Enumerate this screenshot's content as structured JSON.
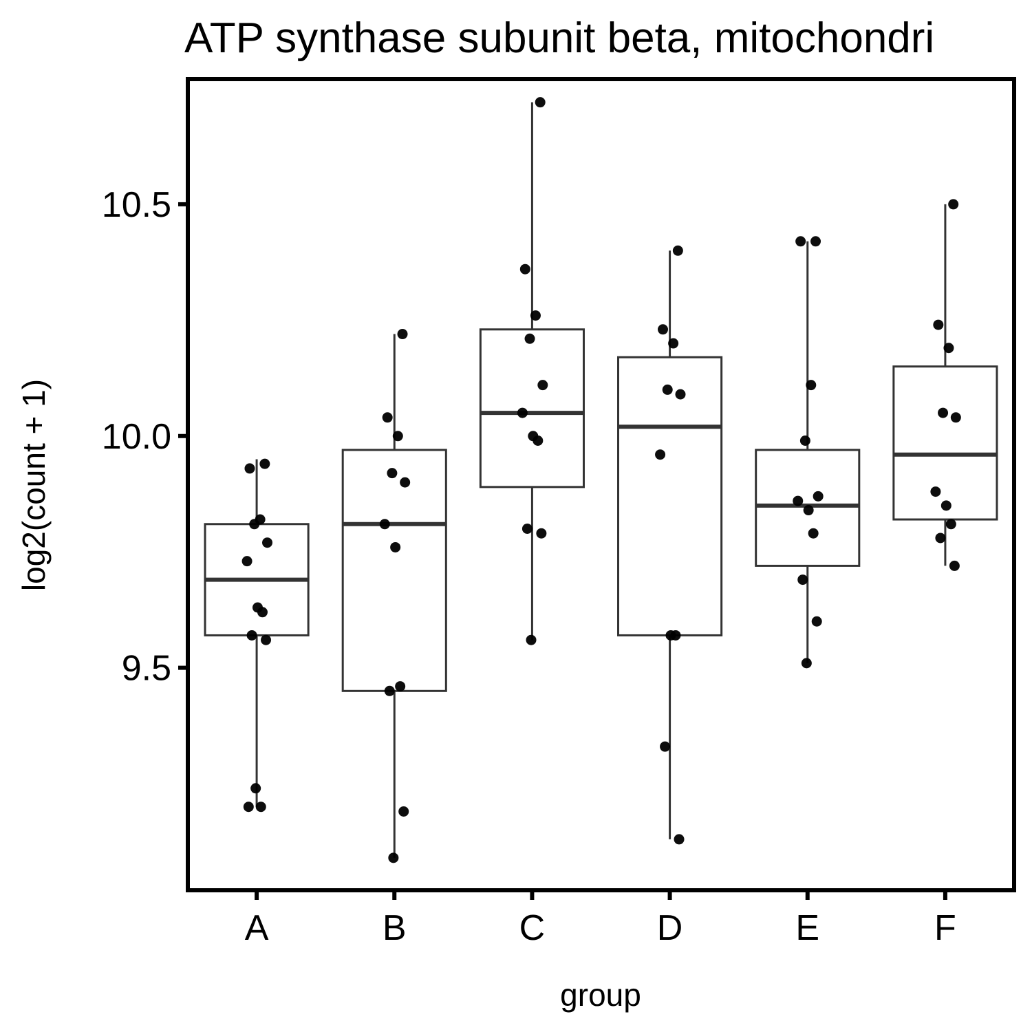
{
  "chart_data": {
    "type": "boxplot",
    "title": "ATP synthase subunit beta, mitochondri",
    "xlabel": "group",
    "ylabel": "log2(count + 1)",
    "categories": [
      "A",
      "B",
      "C",
      "D",
      "E",
      "F"
    ],
    "y_ticks": [
      9.5,
      10.0,
      10.5
    ],
    "y_tick_labels": [
      "9.5",
      "10.0",
      "10.5"
    ],
    "ylim": [
      9.02,
      10.77
    ],
    "grid": false,
    "legend": "none",
    "colors": {
      "box": "#333333",
      "point": "#000000",
      "frame": "#000000"
    },
    "boxes": [
      {
        "category": "A",
        "whisker_low": 9.2,
        "q1": 9.57,
        "median": 9.69,
        "q3": 9.81,
        "whisker_high": 9.95
      },
      {
        "category": "B",
        "whisker_low": 9.09,
        "q1": 9.45,
        "median": 9.81,
        "q3": 9.97,
        "whisker_high": 10.22
      },
      {
        "category": "C",
        "whisker_low": 9.56,
        "q1": 9.89,
        "median": 10.05,
        "q3": 10.23,
        "whisker_high": 10.72
      },
      {
        "category": "D",
        "whisker_low": 9.13,
        "q1": 9.57,
        "median": 10.02,
        "q3": 10.17,
        "whisker_high": 10.4
      },
      {
        "category": "E",
        "whisker_low": 9.51,
        "q1": 9.72,
        "median": 9.85,
        "q3": 9.97,
        "whisker_high": 10.42
      },
      {
        "category": "F",
        "whisker_low": 9.72,
        "q1": 9.82,
        "median": 9.96,
        "q3": 10.15,
        "whisker_high": 10.5
      }
    ],
    "points": [
      {
        "category": "A",
        "values": [
          9.94,
          9.93,
          9.82,
          9.81,
          9.77,
          9.73,
          9.63,
          9.62,
          9.57,
          9.56,
          9.24,
          9.2,
          9.2
        ]
      },
      {
        "category": "B",
        "values": [
          10.22,
          10.04,
          10.0,
          9.92,
          9.9,
          9.81,
          9.76,
          9.46,
          9.45,
          9.19,
          9.09
        ]
      },
      {
        "category": "C",
        "values": [
          10.72,
          10.36,
          10.26,
          10.21,
          10.11,
          10.05,
          10.0,
          9.99,
          9.8,
          9.79,
          9.56
        ]
      },
      {
        "category": "D",
        "values": [
          10.4,
          10.23,
          10.2,
          10.1,
          10.09,
          9.96,
          9.57,
          9.57,
          9.33,
          9.13
        ]
      },
      {
        "category": "E",
        "values": [
          10.42,
          10.42,
          10.11,
          9.99,
          9.87,
          9.86,
          9.84,
          9.79,
          9.69,
          9.6,
          9.51
        ]
      },
      {
        "category": "F",
        "values": [
          10.5,
          10.24,
          10.19,
          10.05,
          10.04,
          9.88,
          9.85,
          9.81,
          9.78,
          9.72
        ]
      }
    ]
  }
}
